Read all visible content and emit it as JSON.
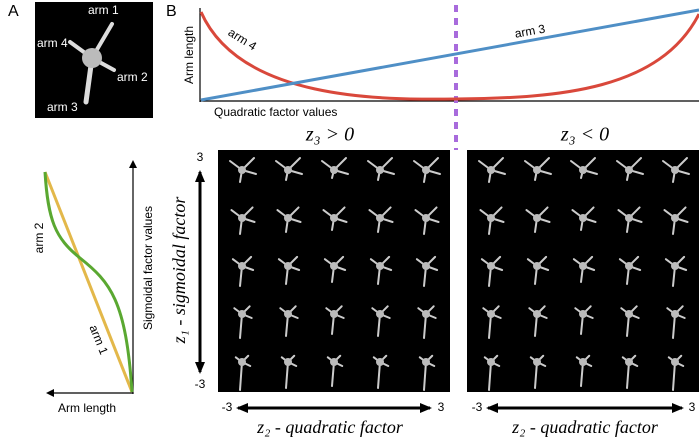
{
  "panel_labels": [
    "A",
    "B"
  ],
  "panel_a": {
    "arm_labels": [
      "arm 1",
      "arm 4",
      "arm 2",
      "arm 3"
    ],
    "curve_labels": [
      "arm 2",
      "arm 1"
    ],
    "y_label": "Sigmoidal  factor values",
    "x_label": "Arm length"
  },
  "panel_b": {
    "y_label": "Arm length",
    "x_label": "Quadratic factor values",
    "curve_labels": [
      "arm 4",
      "arm 3"
    ],
    "grids": [
      {
        "title": "z₃ > 0",
        "x_label": "z₂ - quadratic factor",
        "x_ticks": [
          "-3",
          "3"
        ]
      },
      {
        "title": "z₃ < 0",
        "x_label": "z₂ - quadratic factor",
        "x_ticks": [
          "-3",
          "3"
        ]
      }
    ],
    "y_axis": {
      "label": "z₁ - sigmoidal factor",
      "ticks": [
        "3",
        "-3"
      ]
    }
  }
}
